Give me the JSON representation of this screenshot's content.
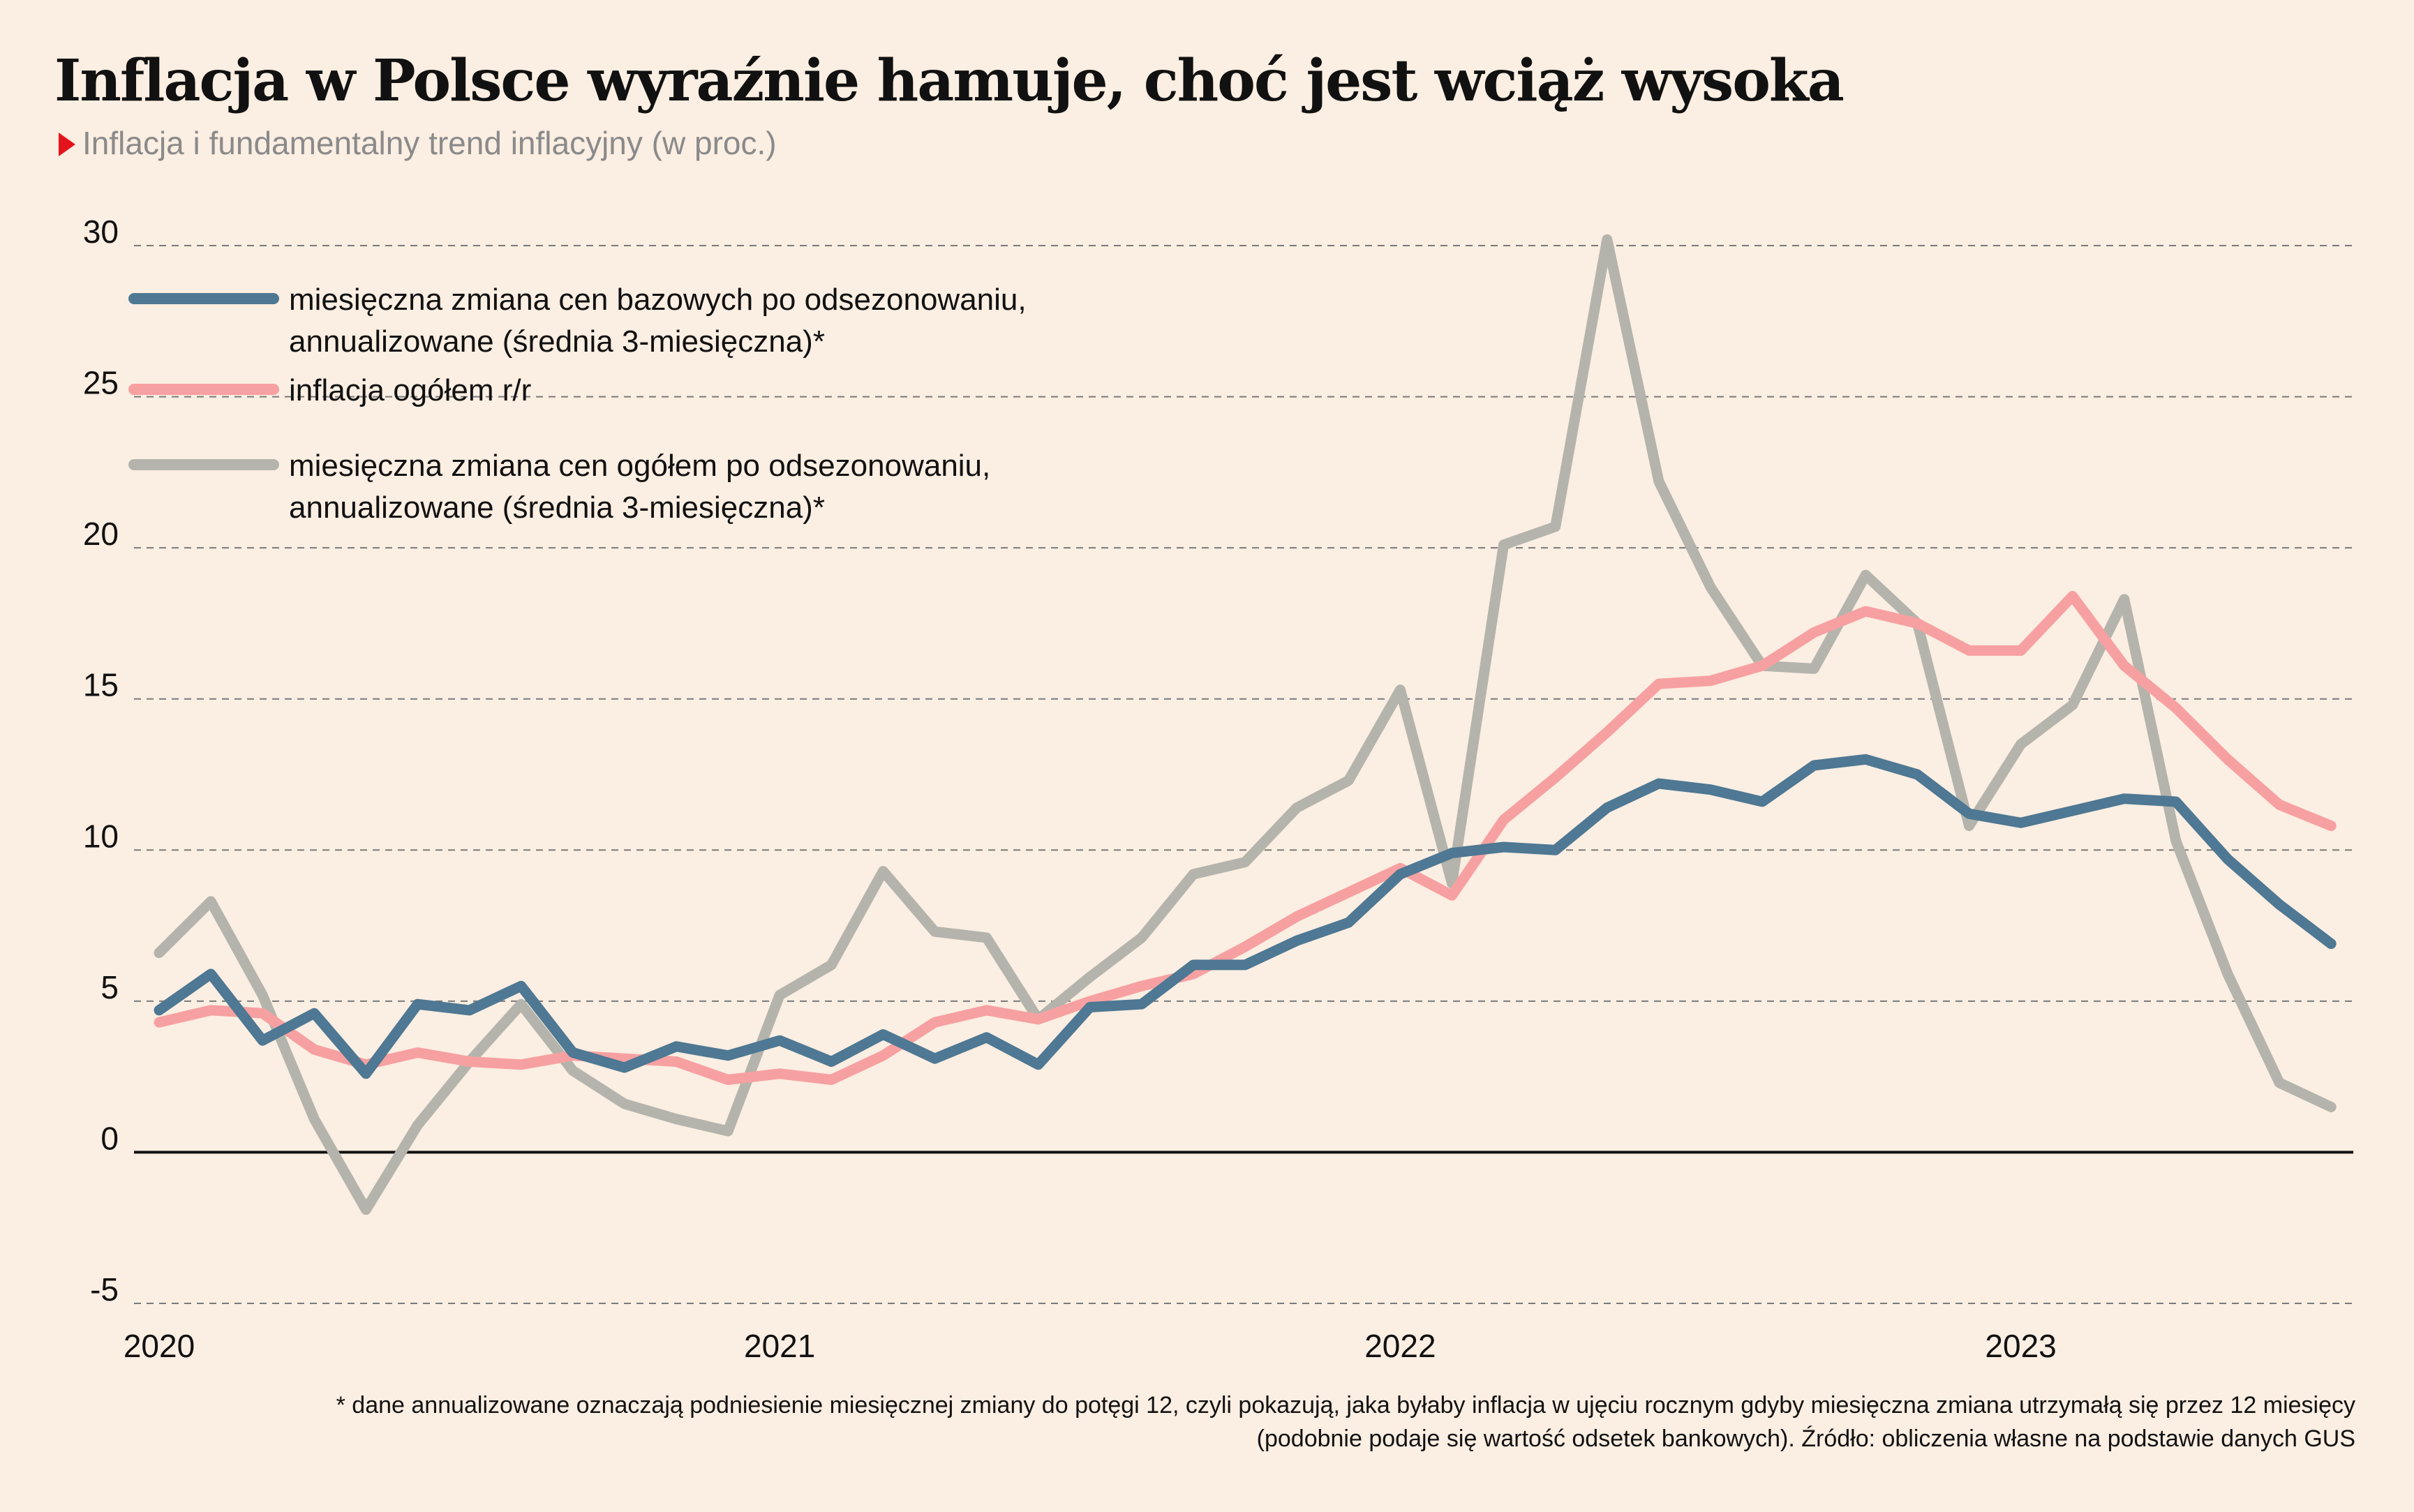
{
  "chart_data": {
    "type": "line",
    "title": "Inflacja w Polsce wyraźnie hamuje, choć jest wciąż wysoka",
    "subtitle": "Inflacja i fundamentalny trend inflacyjny (w proc.)",
    "footnote_line1": "* dane annualizowane oznaczają podniesienie miesięcznej zmiany do potęgi 12, czyli pokazują, jaka byłaby inflacja w ujęciu rocznym gdyby miesięczna zmiana utrzymałą się przez 12 miesięcy",
    "footnote_line2": "(podobnie podaje się wartość odsetek bankowych). Źródło: obliczenia własne na podstawie danych GUS",
    "ylim": [
      -5,
      30
    ],
    "yticks": [
      "-5",
      "0",
      "5",
      "10",
      "15",
      "20",
      "25",
      "30"
    ],
    "xticks": [
      "2020",
      "2021",
      "2022",
      "2023"
    ],
    "x_start": "2020-01",
    "x_end": "2023-07",
    "series": [
      {
        "name": "miesięczna zmiana cen bazowych po odsezonowaniu, annualizowane (średnia 3-miesięczna)*",
        "legend_lines": [
          "miesięczna zmiana cen bazowych po odsezonowaniu,",
          "annualizowane (średnia 3-miesięczna)*"
        ],
        "color": "#4E7893",
        "values": [
          4.7,
          5.9,
          3.7,
          4.6,
          2.6,
          4.9,
          4.7,
          5.5,
          3.3,
          2.8,
          3.5,
          3.2,
          3.7,
          3.0,
          3.9,
          3.1,
          3.8,
          2.9,
          4.8,
          4.9,
          6.2,
          6.2,
          7.0,
          7.6,
          9.2,
          9.9,
          10.1,
          10.0,
          11.4,
          12.2,
          12.0,
          11.6,
          12.8,
          13.0,
          12.5,
          11.2,
          10.9,
          11.3,
          11.7,
          11.6,
          9.7,
          8.2,
          6.9
        ]
      },
      {
        "name": "inflacja ogółem r/r",
        "legend_lines": [
          "inflacja ogółem r/r"
        ],
        "color": "#F7A0A1",
        "values": [
          4.3,
          4.7,
          4.6,
          3.4,
          2.9,
          3.3,
          3.0,
          2.9,
          3.2,
          3.1,
          3.0,
          2.4,
          2.6,
          2.4,
          3.2,
          4.3,
          4.7,
          4.4,
          5.0,
          5.5,
          5.9,
          6.8,
          7.8,
          8.6,
          9.4,
          8.5,
          11.0,
          12.4,
          13.9,
          15.5,
          15.6,
          16.1,
          17.2,
          17.9,
          17.5,
          16.6,
          16.6,
          18.4,
          16.1,
          14.7,
          13.0,
          11.5,
          10.8
        ]
      },
      {
        "name": "miesięczna zmiana cen ogółem po odsezonowaniu, annualizowane (średnia 3-miesięczna)*",
        "legend_lines": [
          "miesięczna zmiana cen ogółem po odsezonowaniu,",
          "annualizowane (średnia 3-miesięczna)*"
        ],
        "color": "#B4B4AC",
        "values": [
          6.6,
          8.3,
          5.2,
          1.1,
          -1.9,
          0.9,
          3.0,
          4.9,
          2.7,
          1.6,
          1.1,
          0.7,
          5.2,
          6.2,
          9.3,
          7.3,
          7.1,
          4.4,
          5.8,
          7.1,
          9.2,
          9.6,
          11.4,
          12.3,
          15.3,
          8.9,
          20.1,
          20.7,
          30.2,
          22.2,
          18.7,
          16.1,
          16.0,
          19.1,
          17.5,
          10.8,
          13.5,
          14.8,
          18.3,
          10.3,
          5.9,
          2.3,
          1.5
        ]
      }
    ]
  }
}
